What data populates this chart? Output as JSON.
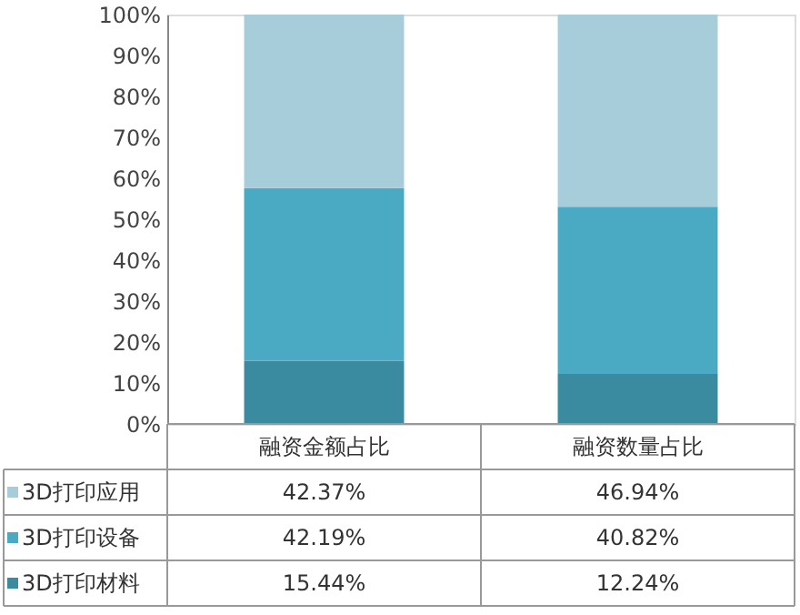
{
  "chart_data": {
    "type": "bar",
    "stacked": true,
    "categories": [
      "融资金额占比",
      "融资数量占比"
    ],
    "series": [
      {
        "name": "3D打印材料",
        "color": "#3a8aa0",
        "values": [
          15.44,
          12.24
        ],
        "value_labels": [
          "15.44%",
          "12.24%"
        ]
      },
      {
        "name": "3D打印设备",
        "color": "#4aaac4",
        "values": [
          42.19,
          40.82
        ],
        "value_labels": [
          "42.19%",
          "40.82%"
        ]
      },
      {
        "name": "3D打印应用",
        "color": "#a7cddb",
        "values": [
          42.37,
          46.94
        ],
        "value_labels": [
          "42.37%",
          "46.94%"
        ]
      }
    ],
    "ylim": [
      0,
      100
    ],
    "yticks": [
      {
        "value": 0,
        "label": "0%"
      },
      {
        "value": 10,
        "label": "10%"
      },
      {
        "value": 20,
        "label": "20%"
      },
      {
        "value": 30,
        "label": "30%"
      },
      {
        "value": 40,
        "label": "40%"
      },
      {
        "value": 50,
        "label": "50%"
      },
      {
        "value": 60,
        "label": "60%"
      },
      {
        "value": 70,
        "label": "70%"
      },
      {
        "value": 80,
        "label": "80%"
      },
      {
        "value": 90,
        "label": "90%"
      },
      {
        "value": 100,
        "label": "100%"
      }
    ],
    "grid": false,
    "legend": "bottom"
  }
}
